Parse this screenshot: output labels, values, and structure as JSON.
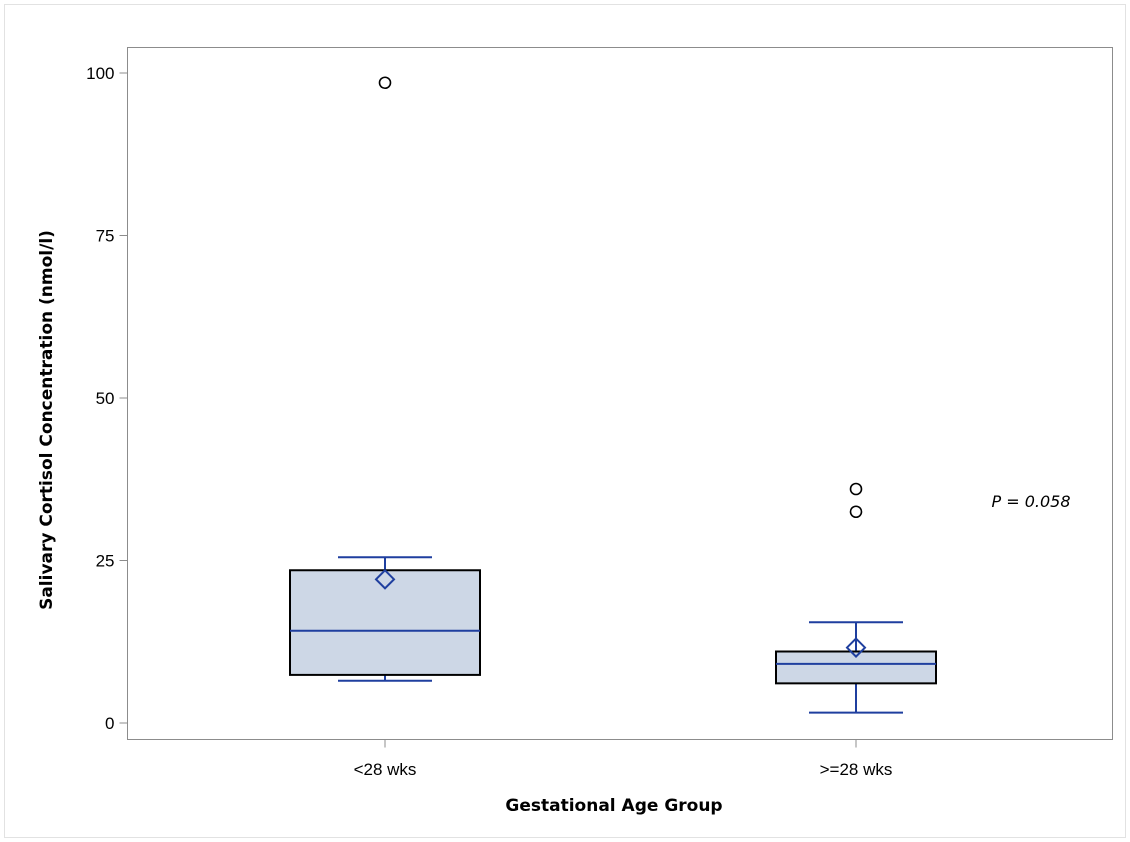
{
  "chart_data": {
    "type": "box",
    "xlabel": "Gestational Age Group",
    "ylabel": "Salivary Cortisol Concentration (nmol/l)",
    "categories": [
      "<28 wks",
      ">=28 wks"
    ],
    "ylim": [
      0,
      100
    ],
    "yticks": [
      0,
      25,
      50,
      75,
      100
    ],
    "grid": false,
    "boxes": [
      {
        "category": "<28 wks",
        "whisker_low": 6.5,
        "q1": 7.4,
        "median": 14.2,
        "q3": 23.5,
        "whisker_high": 25.5,
        "mean": 22.1,
        "outliers": [
          98.5
        ]
      },
      {
        "category": ">=28 wks",
        "whisker_low": 1.6,
        "q1": 6.1,
        "median": 9.1,
        "q3": 11.0,
        "whisker_high": 15.5,
        "mean": 11.6,
        "outliers": [
          32.5,
          36.0
        ]
      }
    ],
    "annotations": [
      {
        "text": "P = 0.058"
      }
    ],
    "colors": {
      "box_fill": "#cdd7e6",
      "box_edge": "#000000",
      "stat_line": "#1f3f9f",
      "outlier": "#000000"
    }
  }
}
